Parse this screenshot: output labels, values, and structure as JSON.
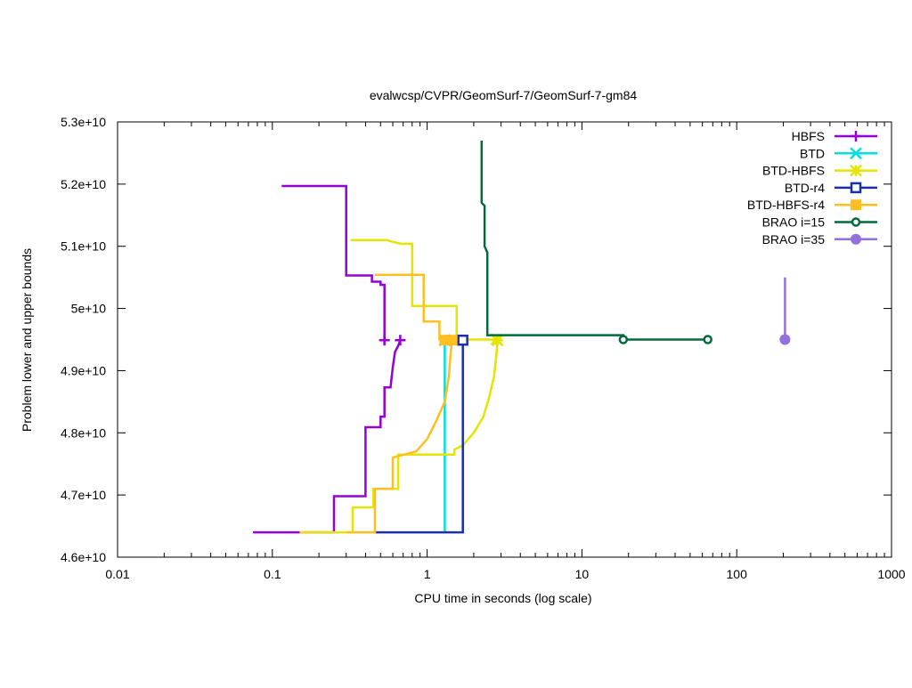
{
  "chart_data": {
    "type": "line",
    "title": "evalwcsp/CVPR/GeomSurf-7/GeomSurf-7-gm84",
    "xlabel": "CPU time in seconds (log scale)",
    "ylabel": "Problem lower and upper bounds",
    "x_scale": "log",
    "xlim": [
      0.01,
      1000
    ],
    "ylim": [
      46000000000,
      53000000000
    ],
    "x_ticks": [
      0.01,
      0.1,
      1,
      10,
      100,
      1000
    ],
    "x_tick_labels": [
      "0.01",
      "0.1",
      "1",
      "10",
      "100",
      "1000"
    ],
    "y_ticks": [
      46000000000,
      47000000000,
      48000000000,
      49000000000,
      50000000000,
      51000000000,
      52000000000,
      53000000000
    ],
    "y_tick_labels": [
      "4.6e+10",
      "4.7e+10",
      "4.8e+10",
      "4.9e+10",
      "5e+10",
      "5.1e+10",
      "5.2e+10",
      "5.3e+10"
    ],
    "legend_position": "top-right",
    "series": [
      {
        "name": "HBFS",
        "color": "#9400d3",
        "marker": "plus",
        "upper": [
          [
            0.115,
            51970000000
          ],
          [
            0.3,
            51970000000
          ],
          [
            0.3,
            50530000000
          ],
          [
            0.44,
            50530000000
          ],
          [
            0.44,
            50430000000
          ],
          [
            0.5,
            50430000000
          ],
          [
            0.5,
            50380000000
          ],
          [
            0.53,
            50380000000
          ],
          [
            0.53,
            49490000000
          ]
        ],
        "lower": [
          [
            0.075,
            46400000000
          ],
          [
            0.25,
            46400000000
          ],
          [
            0.25,
            46980000000
          ],
          [
            0.4,
            46980000000
          ],
          [
            0.4,
            48090000000
          ],
          [
            0.5,
            48090000000
          ],
          [
            0.5,
            48260000000
          ],
          [
            0.53,
            48260000000
          ],
          [
            0.53,
            48730000000
          ],
          [
            0.58,
            48730000000
          ],
          [
            0.6,
            49050000000
          ],
          [
            0.62,
            49300000000
          ],
          [
            0.65,
            49400000000
          ],
          [
            0.67,
            49490000000
          ]
        ],
        "markers": [
          [
            0.53,
            49490000000
          ],
          [
            0.67,
            49490000000
          ]
        ]
      },
      {
        "name": "BTD",
        "color": "#00e0e0",
        "marker": "x",
        "upper": [],
        "lower": [
          [
            1.3,
            46400000000
          ],
          [
            1.3,
            49490000000
          ]
        ],
        "markers": [
          [
            1.3,
            49490000000
          ]
        ]
      },
      {
        "name": "BTD-HBFS",
        "color": "#e5e500",
        "marker": "star",
        "upper": [
          [
            0.32,
            51100000000
          ],
          [
            0.55,
            51100000000
          ],
          [
            0.6,
            51070000000
          ],
          [
            0.68,
            51040000000
          ],
          [
            0.8,
            51040000000
          ],
          [
            0.8,
            50040000000
          ],
          [
            1.55,
            50040000000
          ],
          [
            1.55,
            49500000000
          ],
          [
            2.8,
            49500000000
          ]
        ],
        "lower": [
          [
            0.15,
            46400000000
          ],
          [
            0.33,
            46400000000
          ],
          [
            0.33,
            46800000000
          ],
          [
            0.45,
            46800000000
          ],
          [
            0.45,
            47100000000
          ],
          [
            0.65,
            47100000000
          ],
          [
            0.65,
            47650000000
          ],
          [
            1.5,
            47650000000
          ],
          [
            1.5,
            47730000000
          ],
          [
            1.7,
            47800000000
          ],
          [
            2.0,
            48000000000
          ],
          [
            2.3,
            48250000000
          ],
          [
            2.5,
            48550000000
          ],
          [
            2.7,
            48900000000
          ],
          [
            2.8,
            49250000000
          ],
          [
            2.85,
            49490000000
          ]
        ],
        "markers": [
          [
            2.8,
            49500000000
          ],
          [
            2.85,
            49490000000
          ]
        ]
      },
      {
        "name": "BTD-r4",
        "color": "#1a2fb0",
        "marker": "open-square",
        "upper": [],
        "lower": [
          [
            0.46,
            46400000000
          ],
          [
            1.7,
            46400000000
          ],
          [
            1.7,
            49490000000
          ]
        ],
        "markers": [
          [
            1.7,
            49490000000
          ]
        ]
      },
      {
        "name": "BTD-HBFS-r4",
        "color": "#ffbf20",
        "marker": "filled-square",
        "upper": [
          [
            0.46,
            50540000000
          ],
          [
            0.95,
            50540000000
          ],
          [
            0.95,
            49790000000
          ],
          [
            1.2,
            49790000000
          ],
          [
            1.2,
            49500000000
          ],
          [
            1.5,
            49500000000
          ]
        ],
        "lower": [
          [
            0.3,
            46400000000
          ],
          [
            0.46,
            46400000000
          ],
          [
            0.46,
            47100000000
          ],
          [
            0.6,
            47100000000
          ],
          [
            0.6,
            47600000000
          ],
          [
            0.85,
            47700000000
          ],
          [
            1.0,
            47900000000
          ],
          [
            1.15,
            48200000000
          ],
          [
            1.3,
            48500000000
          ],
          [
            1.38,
            48900000000
          ],
          [
            1.42,
            49300000000
          ],
          [
            1.45,
            49490000000
          ]
        ],
        "markers": [
          [
            1.3,
            49490000000
          ],
          [
            1.45,
            49490000000
          ]
        ]
      },
      {
        "name": "BRAO i=15",
        "color": "#006b3c",
        "marker": "open-circle",
        "upper": [
          [
            2.25,
            52700000000
          ],
          [
            2.25,
            51700000000
          ],
          [
            2.35,
            51650000000
          ],
          [
            2.35,
            51000000000
          ],
          [
            2.45,
            50900000000
          ],
          [
            2.45,
            49570000000
          ],
          [
            18.5,
            49570000000
          ],
          [
            18.5,
            49500000000
          ],
          [
            65,
            49500000000
          ]
        ],
        "lower": [],
        "markers": [
          [
            18.5,
            49500000000
          ],
          [
            65,
            49500000000
          ]
        ]
      },
      {
        "name": "BRAO i=35",
        "color": "#9370db",
        "marker": "filled-circle",
        "upper": [
          [
            205,
            50500000000
          ],
          [
            205,
            49500000000
          ]
        ],
        "lower": [],
        "markers": [
          [
            205,
            49500000000
          ]
        ]
      }
    ]
  }
}
